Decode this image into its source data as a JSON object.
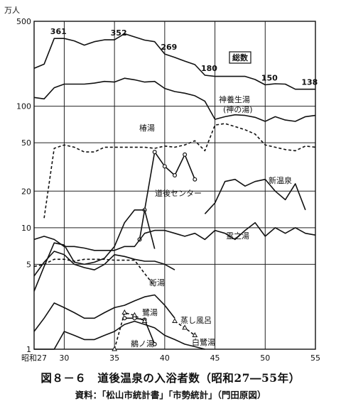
{
  "caption": {
    "title": "図８－６　道後温泉の入浴者数（昭和27―55年）",
    "source": "資料：「松山市統計書」「市勢統計」（門田原図）"
  },
  "chart_data": {
    "type": "line",
    "title": "",
    "xlabel": "",
    "ylabel": "万人",
    "x_range": [
      27,
      55
    ],
    "y_range": [
      1,
      500
    ],
    "y_scale": "log",
    "grid": true,
    "x_ticks": [
      {
        "value": 27,
        "label": "昭和27"
      },
      {
        "value": 30,
        "label": "30"
      },
      {
        "value": 35,
        "label": "35"
      },
      {
        "value": 40,
        "label": "40"
      },
      {
        "value": 45,
        "label": "45"
      },
      {
        "value": 50,
        "label": "50"
      },
      {
        "value": 55,
        "label": "55"
      }
    ],
    "y_ticks": [
      {
        "value": 1,
        "label": "1"
      },
      {
        "value": 5,
        "label": "5"
      },
      {
        "value": 10,
        "label": "10"
      },
      {
        "value": 20,
        "label": "20"
      },
      {
        "value": 50,
        "label": "50"
      },
      {
        "value": 100,
        "label": "100"
      },
      {
        "value": 500,
        "label": "500"
      }
    ],
    "series": [
      {
        "name": "総数",
        "style": "solid",
        "x": [
          27,
          28,
          29,
          30,
          31,
          32,
          33,
          34,
          35,
          36,
          37,
          38,
          39,
          40,
          41,
          42,
          43,
          44,
          45,
          46,
          47,
          48,
          49,
          50,
          51,
          52,
          53,
          54,
          55
        ],
        "y": [
          205,
          222,
          361,
          361,
          345,
          318,
          340,
          352,
          352,
          395,
          372,
          350,
          340,
          269,
          252,
          235,
          220,
          180,
          176,
          176,
          176,
          176,
          166,
          150,
          153,
          152,
          138,
          138,
          138
        ],
        "labels": [
          {
            "x": 29,
            "y": 361,
            "text": "361"
          },
          {
            "x": 35,
            "y": 352,
            "text": "352"
          },
          {
            "x": 40,
            "y": 269,
            "text": "269"
          },
          {
            "x": 44,
            "y": 180,
            "text": "180"
          },
          {
            "x": 50,
            "y": 150,
            "text": "150"
          },
          {
            "x": 54,
            "y": 138,
            "text": "138"
          }
        ]
      },
      {
        "name": "神養生湯（神の湯）",
        "style": "solid",
        "x": [
          27,
          28,
          29,
          30,
          31,
          32,
          33,
          34,
          35,
          36,
          37,
          38,
          39,
          40,
          41,
          42,
          43,
          44,
          45,
          46,
          47,
          48,
          49,
          50,
          51,
          52,
          53,
          54,
          55
        ],
        "y": [
          118,
          115,
          142,
          152,
          152,
          152,
          155,
          160,
          158,
          170,
          165,
          158,
          160,
          140,
          132,
          128,
          122,
          110,
          78,
          82,
          85,
          84,
          81,
          75,
          82,
          77,
          75,
          82,
          84
        ]
      },
      {
        "name": "椿湯",
        "style": "dashed",
        "x": [
          28,
          29,
          30,
          31,
          32,
          33,
          34,
          35,
          36,
          37,
          38,
          39,
          40,
          41,
          42,
          43,
          44,
          45,
          46,
          47,
          48,
          49,
          50,
          51,
          52,
          53,
          54,
          55
        ],
        "y": [
          12,
          45,
          48,
          46,
          42,
          42,
          46,
          46,
          46,
          46,
          46,
          45,
          47,
          46,
          48,
          52,
          43,
          70,
          72,
          68,
          64,
          59,
          48,
          46,
          44,
          43,
          47,
          46
        ]
      },
      {
        "name": "道後センター",
        "style": "solid-dot",
        "x": [
          37.5,
          38,
          39,
          40,
          41,
          42,
          43
        ],
        "y": [
          8,
          14,
          42,
          32,
          27,
          40,
          25
        ]
      },
      {
        "name": "新温泉",
        "style": "solid",
        "x": [
          44,
          45,
          46,
          47,
          48,
          49,
          50,
          51,
          52,
          53,
          54
        ],
        "y": [
          13,
          16,
          24,
          25,
          22,
          24,
          25,
          20,
          17,
          23,
          14
        ]
      },
      {
        "name": "霊之湯",
        "style": "solid",
        "x": [
          27,
          28,
          29,
          30,
          31,
          32,
          33,
          34,
          35,
          36,
          37,
          38,
          39,
          40,
          41,
          42,
          43,
          44,
          45,
          46,
          47,
          48,
          49,
          50,
          51,
          52,
          53,
          54,
          55
        ],
        "y": [
          8,
          8.5,
          8,
          7,
          7,
          6.8,
          6.5,
          6.5,
          6.5,
          7,
          7,
          9,
          9.5,
          9.5,
          9,
          8.5,
          9,
          8,
          9.5,
          9,
          8,
          9.5,
          11,
          8.5,
          10,
          9,
          10,
          9,
          8.7
        ]
      },
      {
        "name": "新湯",
        "style": "dashed",
        "x": [
          27,
          28,
          29,
          30,
          31,
          32,
          33,
          34,
          35,
          36,
          37,
          38,
          39
        ],
        "y": [
          4.8,
          5,
          5.5,
          5.5,
          5.3,
          5.5,
          5.5,
          5.5,
          5.4,
          5.4,
          5.4,
          4.2,
          3.3
        ]
      },
      {
        "name": "",
        "style": "solid",
        "x": [
          27,
          28,
          29,
          30,
          31,
          32,
          33,
          34,
          35,
          36,
          37,
          38,
          39
        ],
        "y": [
          3,
          4.8,
          7.5,
          7.2,
          5.2,
          5,
          5.2,
          5.6,
          7,
          11,
          14,
          14,
          6.7
        ]
      },
      {
        "name": "",
        "style": "solid",
        "x": [
          27,
          28,
          29,
          30,
          31,
          32,
          33,
          34,
          35,
          36,
          37,
          38,
          39,
          40,
          41
        ],
        "y": [
          4,
          5.2,
          6.4,
          6,
          5,
          4.7,
          4.5,
          5,
          6,
          5.8,
          5.5,
          5.3,
          5.3,
          5,
          4.5
        ]
      },
      {
        "name": "鷺湯",
        "style": "solid",
        "x": [
          27,
          28,
          29,
          30,
          31,
          32,
          33,
          34,
          35,
          36,
          37,
          38,
          39,
          40,
          41
        ],
        "y": [
          1.4,
          1.8,
          2.4,
          2.2,
          2.0,
          1.8,
          1.8,
          2.0,
          2.2,
          2.3,
          2.5,
          2.7,
          2.8,
          2.3,
          1.8
        ]
      },
      {
        "name": "",
        "style": "solid",
        "x": [
          27,
          28,
          29,
          30,
          31,
          32,
          33,
          34,
          35,
          36,
          37,
          38,
          39,
          40,
          41,
          42,
          43,
          44
        ],
        "y": [
          1,
          1,
          1,
          1.4,
          1.3,
          1.2,
          1.2,
          1.3,
          1.4,
          1.6,
          1.7,
          1.6,
          1.5,
          1.3,
          1.2,
          1.1,
          1.05,
          1
        ]
      },
      {
        "name": "鶺ノ湯",
        "style": "solid-dot",
        "x": [
          36,
          37,
          38,
          39
        ],
        "y": [
          1.8,
          1.8,
          1.75,
          1.1
        ]
      },
      {
        "name": "蒸し風呂",
        "style": "dashed-triangle",
        "x": [
          35,
          36,
          37,
          38
        ],
        "y": [
          1,
          2,
          1.9,
          1.7
        ]
      },
      {
        "name": "白鷺湯",
        "style": "dashed-triangle",
        "x": [
          41,
          42,
          43
        ],
        "y": [
          1.7,
          1.5,
          1.3
        ]
      }
    ],
    "annotations": [
      {
        "text": "総数",
        "boxed": true
      },
      {
        "text": "神養生湯"
      },
      {
        "text": "(神の湯)"
      },
      {
        "text": "椿湯"
      },
      {
        "text": "道後センター"
      },
      {
        "text": "新温泉"
      },
      {
        "text": "霊之湯"
      },
      {
        "text": "新湯"
      },
      {
        "text": "鷺湯"
      },
      {
        "text": "蒸し風呂"
      },
      {
        "text": "鶺ノ湯"
      },
      {
        "text": "白鷺湯"
      }
    ]
  }
}
